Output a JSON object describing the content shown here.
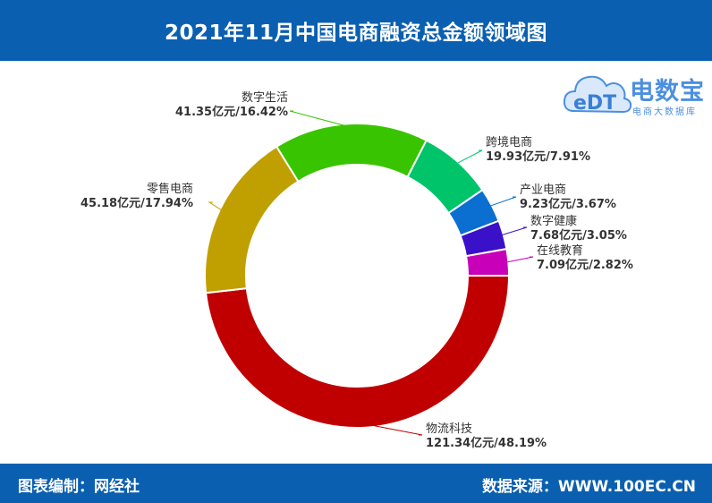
{
  "header": {
    "title": "2021年11月中国电商融资总金额领域图"
  },
  "footer": {
    "left": "图表编制：网经社",
    "right": "数据来源：WWW.100EC.CN"
  },
  "logo": {
    "name": "电数宝",
    "sub": "电商大数据库",
    "mark": "eDT"
  },
  "chart_data": {
    "type": "pie",
    "variant": "donut",
    "unit": "亿元",
    "slices": [
      {
        "name": "物流科技",
        "value": 121.34,
        "percent": 48.19,
        "label": "121.34亿元/48.19%",
        "color": "#c00000"
      },
      {
        "name": "零售电商",
        "value": 45.18,
        "percent": 17.94,
        "label": "45.18亿元/17.94%",
        "color": "#c0a000"
      },
      {
        "name": "数字生活",
        "value": 41.35,
        "percent": 16.42,
        "label": "41.35亿元/16.42%",
        "color": "#39c400"
      },
      {
        "name": "跨境电商",
        "value": 19.93,
        "percent": 7.91,
        "label": "19.93亿元/7.91%",
        "color": "#00c46a"
      },
      {
        "name": "产业电商",
        "value": 9.23,
        "percent": 3.67,
        "label": "9.23亿元/3.67%",
        "color": "#0a6fd0"
      },
      {
        "name": "数字健康",
        "value": 7.68,
        "percent": 3.05,
        "label": "7.68亿元/3.05%",
        "color": "#3a10c8"
      },
      {
        "name": "在线教育",
        "value": 7.09,
        "percent": 2.82,
        "label": "7.09亿元/2.82%",
        "color": "#c800b8"
      }
    ]
  }
}
